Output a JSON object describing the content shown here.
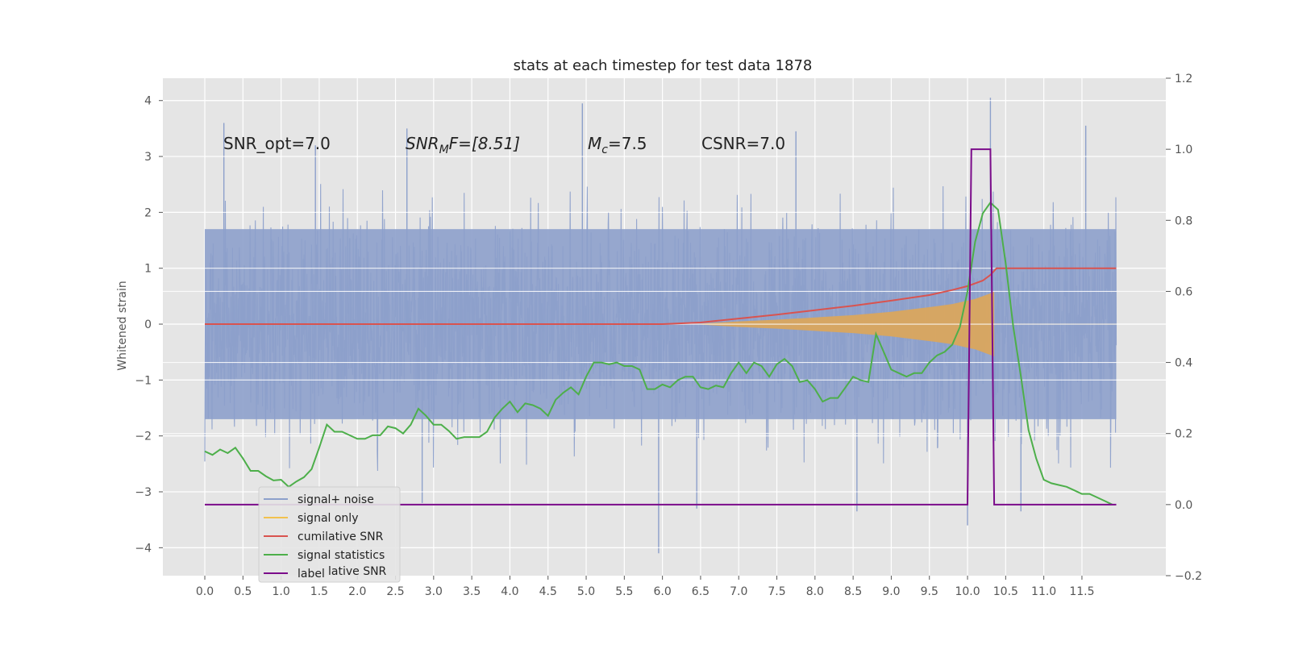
{
  "chart_data": {
    "type": "line",
    "title": "stats at each timestep for test data 1878",
    "ylabel": "Whitened strain",
    "xlim": [
      -0.55,
      12.6
    ],
    "ylim": [
      -4.5,
      4.4
    ],
    "y2lim": [
      -0.2,
      1.2
    ],
    "grid": true,
    "legend_position": "lower-left",
    "xticks": [
      "0.0",
      "0.5",
      "1.0",
      "1.5",
      "2.0",
      "2.5",
      "3.0",
      "3.5",
      "4.0",
      "4.5",
      "5.0",
      "5.5",
      "6.0",
      "6.5",
      "7.0",
      "7.5",
      "8.0",
      "8.5",
      "9.0",
      "9.5",
      "10.0",
      "10.5",
      "11.0",
      "11.5"
    ],
    "yticks": [
      "4",
      "3",
      "2",
      "1",
      "0",
      "−1",
      "−2",
      "−3",
      "−4"
    ],
    "y2ticks": [
      "1.2",
      "1.0",
      "0.8",
      "0.6",
      "0.4",
      "0.2",
      "0.0",
      "−0.2"
    ],
    "annotations": {
      "snr_opt": "SNR_opt=7.0",
      "snr_mf_base": "SNR",
      "snr_mf_sub": "M",
      "snr_mf_rest": "F=[8.51]",
      "mc_base": "M",
      "mc_sub": "c",
      "mc_rest": "=7.5",
      "csnr": "CSNR=7.0"
    },
    "noise_band": {
      "x_start": 0.0,
      "x_end": 11.95,
      "typical_max": 2.0,
      "typical_min": -2.0
    },
    "noise_spikes": [
      {
        "x": 0.25,
        "y": 3.6
      },
      {
        "x": 1.45,
        "y": 3.2
      },
      {
        "x": 2.65,
        "y": 3.5
      },
      {
        "x": 4.95,
        "y": 3.95
      },
      {
        "x": 6.0,
        "y": 0.9
      },
      {
        "x": 7.75,
        "y": 3.45
      },
      {
        "x": 10.3,
        "y": 4.05
      },
      {
        "x": 11.55,
        "y": 3.55
      },
      {
        "x": 5.95,
        "y": -4.1
      },
      {
        "x": 10.0,
        "y": -3.6
      },
      {
        "x": 8.55,
        "y": -3.35
      },
      {
        "x": 2.85,
        "y": -3.2
      },
      {
        "x": 6.45,
        "y": -3.3
      },
      {
        "x": 10.7,
        "y": -3.35
      }
    ],
    "series": [
      {
        "name": "signal+ noise",
        "axis": "left",
        "color": "#8da0cb"
      },
      {
        "name": "signal only",
        "axis": "left",
        "color": "#f2c14e",
        "fill_color": "#dca65a",
        "envelope_x": [
          6.4,
          7.0,
          7.5,
          8.0,
          8.5,
          9.0,
          9.3,
          9.6,
          9.8,
          10.0,
          10.1,
          10.2,
          10.3,
          10.35
        ],
        "envelope_y": [
          0.0,
          0.05,
          0.08,
          0.12,
          0.16,
          0.22,
          0.27,
          0.32,
          0.36,
          0.42,
          0.45,
          0.5,
          0.55,
          0.58
        ]
      },
      {
        "name": "cumilative SNR",
        "axis": "left",
        "color": "#d9534f",
        "x": [
          0.0,
          5.0,
          6.0,
          6.5,
          7.0,
          7.5,
          8.0,
          8.5,
          9.0,
          9.5,
          9.8,
          10.0,
          10.2,
          10.3,
          10.38,
          11.95
        ],
        "y": [
          0.0,
          0.0,
          0.0,
          0.03,
          0.1,
          0.17,
          0.25,
          0.33,
          0.42,
          0.52,
          0.61,
          0.68,
          0.78,
          0.88,
          1.0,
          1.0
        ]
      },
      {
        "name": "signal statistics",
        "axis": "right",
        "color": "#4daf4a",
        "x": [
          0.0,
          0.1,
          0.2,
          0.3,
          0.4,
          0.5,
          0.6,
          0.7,
          0.8,
          0.9,
          1.0,
          1.1,
          1.2,
          1.3,
          1.4,
          1.5,
          1.6,
          1.7,
          1.8,
          1.9,
          2.0,
          2.1,
          2.2,
          2.3,
          2.4,
          2.5,
          2.6,
          2.7,
          2.8,
          2.9,
          3.0,
          3.1,
          3.2,
          3.3,
          3.4,
          3.5,
          3.6,
          3.7,
          3.8,
          3.9,
          4.0,
          4.1,
          4.2,
          4.3,
          4.4,
          4.5,
          4.6,
          4.7,
          4.8,
          4.9,
          5.0,
          5.1,
          5.2,
          5.3,
          5.4,
          5.5,
          5.6,
          5.7,
          5.8,
          5.9,
          6.0,
          6.1,
          6.2,
          6.3,
          6.4,
          6.5,
          6.6,
          6.7,
          6.8,
          6.9,
          7.0,
          7.1,
          7.2,
          7.3,
          7.4,
          7.5,
          7.6,
          7.7,
          7.8,
          7.9,
          8.0,
          8.1,
          8.2,
          8.3,
          8.4,
          8.5,
          8.6,
          8.7,
          8.8,
          8.9,
          9.0,
          9.1,
          9.2,
          9.3,
          9.4,
          9.5,
          9.6,
          9.7,
          9.8,
          9.9,
          10.0,
          10.1,
          10.2,
          10.3,
          10.4,
          10.5,
          10.6,
          10.7,
          10.8,
          10.9,
          11.0,
          11.1,
          11.2,
          11.3,
          11.4,
          11.5,
          11.6,
          11.7,
          11.8,
          11.9
        ],
        "y": [
          0.15,
          0.14,
          0.155,
          0.145,
          0.16,
          0.13,
          0.095,
          0.095,
          0.08,
          0.068,
          0.07,
          0.05,
          0.065,
          0.077,
          0.1,
          0.16,
          0.225,
          0.205,
          0.205,
          0.195,
          0.185,
          0.185,
          0.195,
          0.195,
          0.22,
          0.215,
          0.2,
          0.225,
          0.27,
          0.25,
          0.225,
          0.225,
          0.207,
          0.185,
          0.19,
          0.19,
          0.19,
          0.205,
          0.245,
          0.27,
          0.29,
          0.26,
          0.285,
          0.28,
          0.27,
          0.25,
          0.295,
          0.315,
          0.33,
          0.31,
          0.36,
          0.4,
          0.4,
          0.395,
          0.4,
          0.39,
          0.39,
          0.38,
          0.325,
          0.325,
          0.338,
          0.33,
          0.35,
          0.36,
          0.36,
          0.33,
          0.325,
          0.335,
          0.33,
          0.37,
          0.4,
          0.37,
          0.4,
          0.39,
          0.36,
          0.395,
          0.41,
          0.39,
          0.345,
          0.35,
          0.325,
          0.29,
          0.3,
          0.3,
          0.33,
          0.36,
          0.35,
          0.345,
          0.48,
          0.43,
          0.38,
          0.37,
          0.36,
          0.37,
          0.37,
          0.4,
          0.42,
          0.43,
          0.45,
          0.5,
          0.6,
          0.74,
          0.82,
          0.85,
          0.83,
          0.68,
          0.5,
          0.36,
          0.21,
          0.13,
          0.07,
          0.06,
          0.055,
          0.05,
          0.04,
          0.03,
          0.03,
          0.02,
          0.01,
          0.0
        ]
      },
      {
        "name": "label",
        "axis": "right",
        "color": "#7b0c8a",
        "x": [
          0.0,
          10.0,
          10.05,
          10.3,
          10.35,
          11.95
        ],
        "y": [
          0.0,
          0.0,
          1.0,
          1.0,
          0.0,
          0.0
        ]
      }
    ],
    "legend": [
      "signal+ noise",
      "signal only",
      "cumilative SNR",
      "signal statistics",
      "label"
    ],
    "legend_ghost_text": "lative SNR"
  }
}
